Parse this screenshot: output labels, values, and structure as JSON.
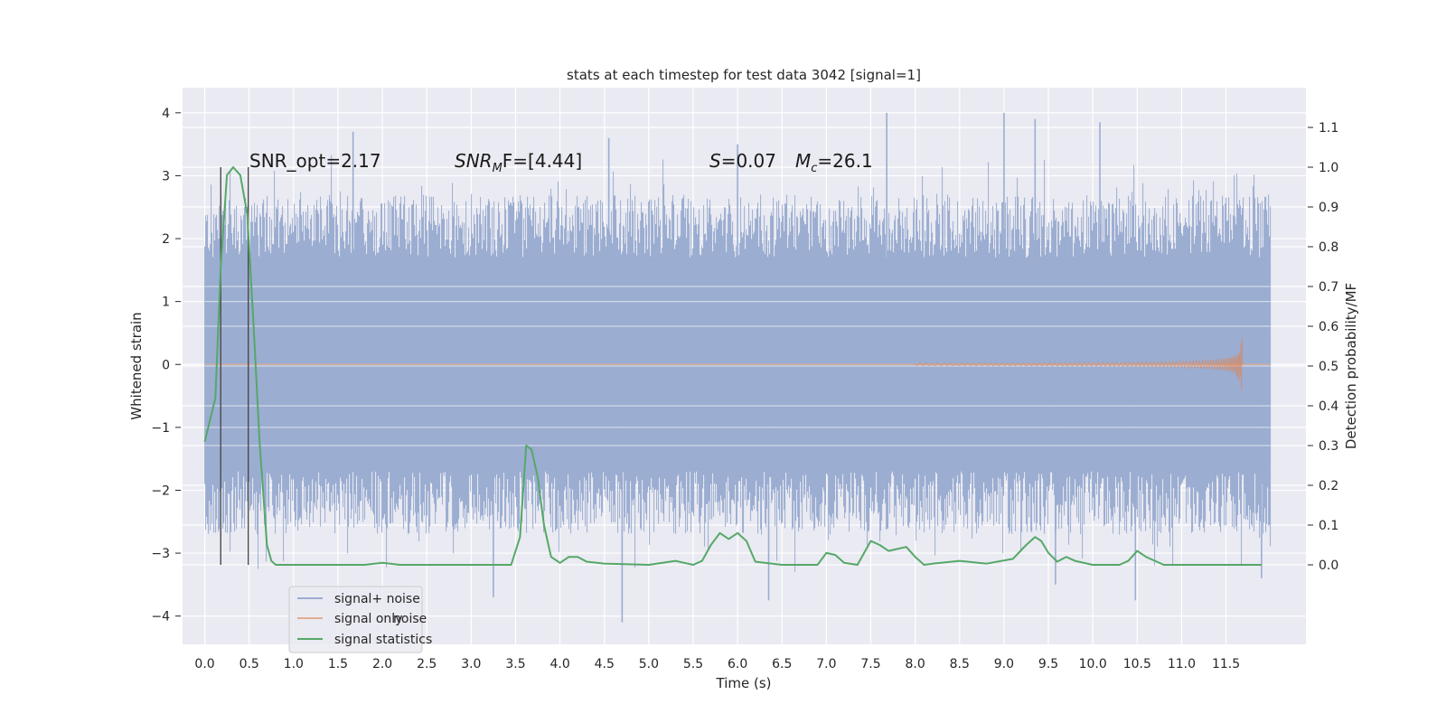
{
  "chart_data": {
    "type": "line",
    "title": "stats at each timestep for test data 3042 [signal=1]",
    "xlabel": "Time (s)",
    "ylabel": "Whitened strain",
    "ylabel_right": "Detection probability/MF",
    "xlim": [
      -0.25,
      12.4
    ],
    "ylim": [
      -4.45,
      4.4
    ],
    "ylim_right": [
      -0.2,
      1.2
    ],
    "x_ticks": [
      "0.0",
      "0.5",
      "1.0",
      "1.5",
      "2.0",
      "2.5",
      "3.0",
      "3.5",
      "4.0",
      "4.5",
      "5.0",
      "5.5",
      "6.0",
      "6.5",
      "7.0",
      "7.5",
      "8.0",
      "8.5",
      "9.0",
      "9.5",
      "10.0",
      "10.5",
      "11.0",
      "11.5"
    ],
    "y_ticks": [
      "4",
      "3",
      "2",
      "1",
      "0",
      "−1",
      "−2",
      "−3",
      "−4"
    ],
    "y_ticks_right": [
      "1.1",
      "1.0",
      "0.9",
      "0.8",
      "0.7",
      "0.6",
      "0.5",
      "0.4",
      "0.3",
      "0.2",
      "0.1",
      "0.0"
    ],
    "grid": true,
    "legend_position": "lower-left",
    "colors": {
      "background": "#eaeaf2",
      "grid": "#ffffff",
      "noise": "#9badd1",
      "signal": "#dd8452",
      "statistics": "#55a868",
      "marker": "#4a4a4a"
    },
    "annotations": {
      "snr_opt": "SNR_opt=2.17",
      "snr_mf_label": "SNR",
      "snr_mf_sub": "M",
      "snr_mf_rest": "F=[4.44]",
      "s_label": "S",
      "s_value": "=0.07",
      "mc_label": "M",
      "mc_sub": "c",
      "mc_value": "=26.1"
    },
    "vertical_markers": [
      0.18,
      0.49
    ],
    "series": [
      {
        "name": "signal+ noise",
        "axis": "left",
        "t_start": 0.0,
        "t_end": 12.0,
        "envelope": [
          3.0,
          -3.0
        ],
        "peaks_high": [
          [
            1.67,
            3.7
          ],
          [
            7.68,
            4.0
          ],
          [
            9.0,
            4.0
          ],
          [
            9.35,
            3.9
          ],
          [
            10.08,
            3.85
          ],
          [
            6.0,
            3.5
          ],
          [
            4.55,
            3.6
          ]
        ],
        "peaks_low": [
          [
            4.7,
            -4.1
          ],
          [
            3.25,
            -3.7
          ],
          [
            6.35,
            -3.75
          ],
          [
            10.48,
            -3.75
          ],
          [
            9.58,
            -3.5
          ],
          [
            11.9,
            -3.4
          ]
        ]
      },
      {
        "name": "signal only",
        "axis": "left",
        "chirp_start": 8.0,
        "chirp_peak": 11.67,
        "chirp_end": 11.7,
        "peak_amplitude": 0.55
      },
      {
        "name": "signal statistics",
        "axis": "right",
        "x": [
          0.0,
          0.12,
          0.18,
          0.25,
          0.32,
          0.4,
          0.48,
          0.55,
          0.62,
          0.7,
          0.75,
          0.8,
          1.0,
          1.5,
          1.8,
          2.0,
          2.2,
          2.5,
          3.0,
          3.3,
          3.45,
          3.55,
          3.62,
          3.68,
          3.75,
          3.82,
          3.9,
          4.0,
          4.1,
          4.2,
          4.3,
          4.5,
          5.0,
          5.3,
          5.5,
          5.6,
          5.7,
          5.8,
          5.9,
          6.0,
          6.1,
          6.2,
          6.5,
          6.9,
          7.0,
          7.1,
          7.2,
          7.35,
          7.5,
          7.6,
          7.7,
          7.8,
          7.9,
          8.0,
          8.1,
          8.2,
          8.5,
          8.8,
          9.1,
          9.25,
          9.35,
          9.42,
          9.5,
          9.6,
          9.7,
          9.8,
          10.0,
          10.3,
          10.4,
          10.5,
          10.6,
          10.8,
          11.2,
          11.7,
          11.9
        ],
        "y": [
          0.31,
          0.42,
          0.75,
          0.98,
          1.0,
          0.98,
          0.88,
          0.6,
          0.3,
          0.05,
          0.01,
          0.0,
          0.0,
          0.0,
          0.0,
          0.005,
          0.0,
          0.0,
          0.0,
          0.0,
          0.0,
          0.07,
          0.3,
          0.29,
          0.22,
          0.1,
          0.02,
          0.005,
          0.02,
          0.02,
          0.008,
          0.003,
          0.0,
          0.01,
          0.0,
          0.01,
          0.05,
          0.08,
          0.065,
          0.08,
          0.06,
          0.008,
          0.0,
          0.0,
          0.03,
          0.025,
          0.005,
          0.0,
          0.06,
          0.05,
          0.035,
          0.04,
          0.045,
          0.02,
          0.0,
          0.003,
          0.01,
          0.003,
          0.015,
          0.05,
          0.07,
          0.06,
          0.03,
          0.008,
          0.02,
          0.01,
          0.0,
          0.0,
          0.01,
          0.035,
          0.02,
          0.0,
          0.0,
          0.0,
          0.0
        ]
      }
    ],
    "legend": {
      "items": [
        {
          "label": "signal+ noise",
          "ghost": ""
        },
        {
          "label": "signal only",
          "ghost": "noise"
        },
        {
          "label": "signal statistics",
          "ghost": ""
        }
      ]
    }
  }
}
